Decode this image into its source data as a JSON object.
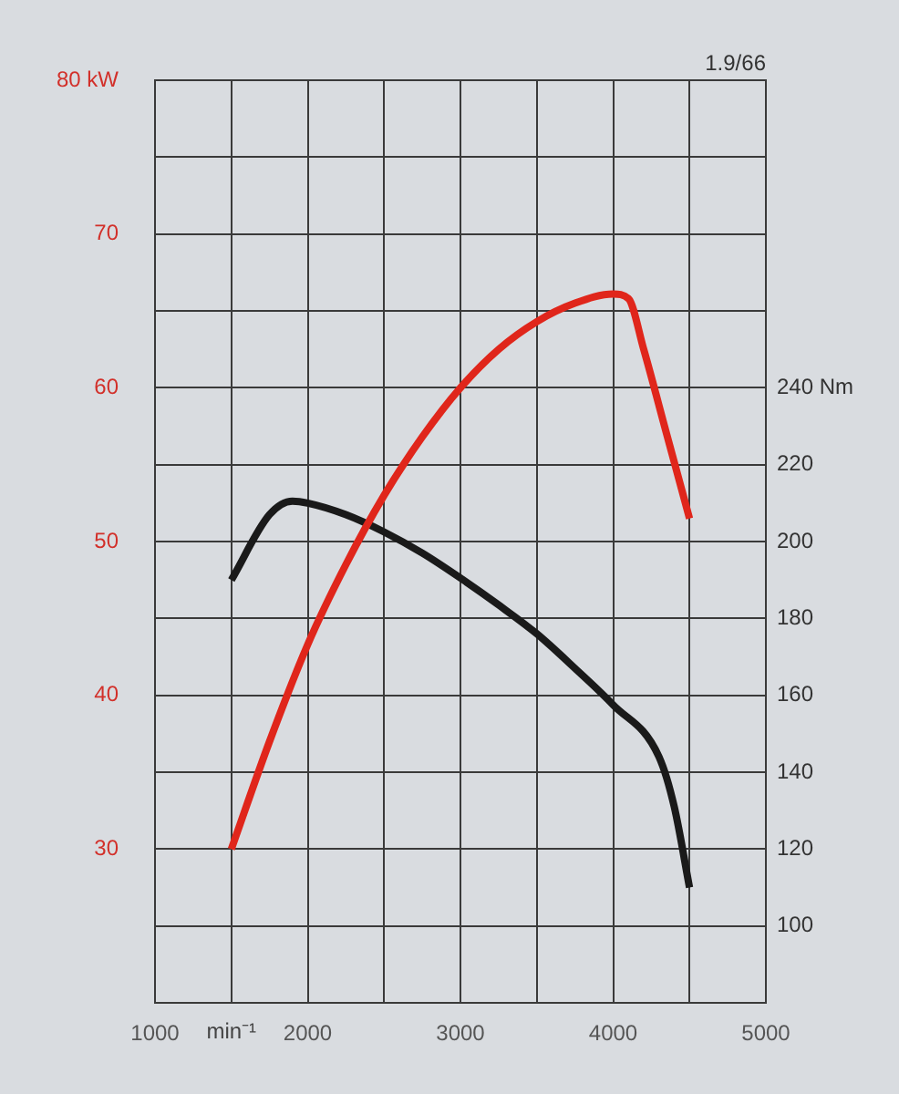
{
  "chart_data": {
    "type": "line",
    "title": "1.9/66",
    "xlabel": "min⁻¹",
    "xlim": [
      1000,
      5000
    ],
    "xticks": [
      1000,
      {
        "value": 1500,
        "label": null
      },
      2000,
      {
        "value": 2500,
        "label": null
      },
      3000,
      {
        "value": 3500,
        "label": null
      },
      4000,
      {
        "value": 4500,
        "label": null
      },
      5000
    ],
    "ylim": [
      20,
      80
    ],
    "yticks": [
      {
        "value": 25,
        "label": null
      },
      30,
      {
        "value": 35,
        "label": null
      },
      40,
      {
        "value": 45,
        "label": null
      },
      50,
      {
        "value": 55,
        "label": null
      },
      60,
      {
        "value": 65,
        "label": null
      },
      70,
      {
        "value": 75,
        "label": null
      },
      {
        "value": 80,
        "label": "80 kW"
      }
    ],
    "y2lim": [
      80,
      320
    ],
    "y2ticks": [
      100,
      120,
      140,
      160,
      180,
      200,
      220,
      {
        "value": 240,
        "label": "240 Nm"
      }
    ],
    "series": [
      {
        "color": "#e0261b",
        "x": [
          1500,
          1750,
          2000,
          2250,
          2500,
          2750,
          3000,
          3250,
          3500,
          3750,
          4000,
          4100,
          4200,
          4350,
          4500
        ],
        "values": [
          30,
          37,
          43.3,
          48.5,
          53,
          56.8,
          60,
          62.5,
          64.3,
          65.5,
          66.1,
          65.8,
          62.5,
          57,
          51.5
        ]
      },
      {
        "color": "#1a1a1a",
        "axis": "y2",
        "x": [
          1500,
          1750,
          1900,
          2000,
          2250,
          2500,
          2750,
          3000,
          3250,
          3500,
          3750,
          4000,
          4300,
          4400,
          4500
        ],
        "values": [
          190,
          207,
          210.5,
          210,
          207,
          202.5,
          197,
          190.5,
          183.5,
          176,
          167,
          157.5,
          144,
          131,
          110
        ]
      }
    ],
    "grid": true,
    "marker": "none",
    "line_style": "solid"
  }
}
